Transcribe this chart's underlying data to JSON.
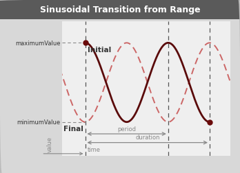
{
  "title": "Sinusoidal Transition from Range",
  "title_bg": "#5a5a5a",
  "title_color": "#ffffff",
  "bg_color": "#d8d8d8",
  "plot_bg": "#efefef",
  "curve_color_solid": "#5a0a0a",
  "curve_color_dashed": "#cc6666",
  "vline_color": "#555555",
  "hline_color": "#888888",
  "annotation_color": "#888888",
  "dot_color": "#6a0a0a",
  "label_color": "#333333",
  "maximumValue": 1.0,
  "minimumValue": -1.0,
  "x_start": 0.5,
  "x_period_end": 2.5,
  "x_end": 3.5,
  "period": 2.0,
  "xlim": [
    -0.05,
    4.0
  ],
  "ylim": [
    -1.85,
    1.55
  ],
  "title_fontsize": 9,
  "label_fontsize": 6,
  "bold_fontsize": 7.5,
  "annot_fontsize": 6
}
